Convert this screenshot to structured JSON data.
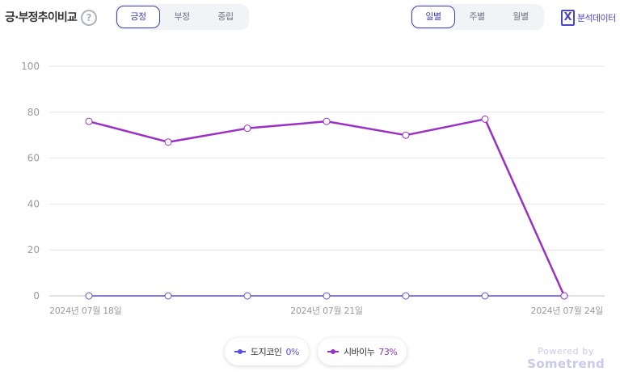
{
  "header": {
    "title": "긍·부정추이비교",
    "help_icon": "question-circle-icon",
    "sentiment_tabs": [
      {
        "label": "긍정",
        "active": true
      },
      {
        "label": "부정",
        "active": false
      },
      {
        "label": "중립",
        "active": false
      }
    ],
    "period_tabs": [
      {
        "label": "일별",
        "active": true
      },
      {
        "label": "주별",
        "active": false
      },
      {
        "label": "월별",
        "active": false
      }
    ],
    "export": {
      "icon": "excel-icon",
      "icon_glyph": "X",
      "label": "분석데이터"
    }
  },
  "legend": [
    {
      "name": "도지코인",
      "value": "0%",
      "color": "#5a4fe0"
    },
    {
      "name": "시바이누",
      "value": "73%",
      "color": "#9b30c4"
    }
  ],
  "watermark": {
    "powered": "Powered by",
    "brand": "Sometrend"
  },
  "chart_data": {
    "type": "line",
    "x": [
      "2024-07-18",
      "2024-07-19",
      "2024-07-20",
      "2024-07-21",
      "2024-07-22",
      "2024-07-23",
      "2024-07-24"
    ],
    "x_tick_labels": [
      {
        "index": 0,
        "label": "2024년 07월 18일"
      },
      {
        "index": 3,
        "label": "2024년 07월 21일"
      },
      {
        "index": 6,
        "label": "2024년 07월 24일"
      }
    ],
    "series": [
      {
        "name": "도지코인",
        "color": "#5a4fe0",
        "values": [
          0,
          0,
          0,
          0,
          0,
          0,
          0
        ]
      },
      {
        "name": "시바이누",
        "color": "#9b30c4",
        "values": [
          76,
          67,
          73,
          76,
          70,
          77,
          0
        ]
      }
    ],
    "ylim": [
      0,
      100
    ],
    "yticks": [
      0,
      20,
      40,
      60,
      80,
      100
    ],
    "grid": true,
    "legend_position": "bottom-center",
    "xlabel": "",
    "ylabel": ""
  }
}
